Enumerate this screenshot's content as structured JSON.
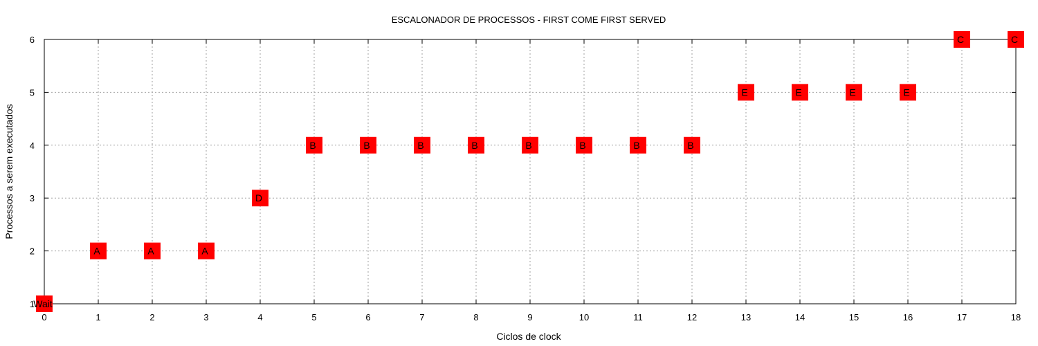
{
  "chart_data": {
    "type": "scatter",
    "title": "ESCALONADOR DE PROCESSOS - FIRST COME FIRST SERVED",
    "xlabel": "Ciclos de clock",
    "ylabel": "Processos a serem executados",
    "xlim": [
      0,
      18
    ],
    "ylim": [
      1,
      6
    ],
    "xticks": [
      0,
      1,
      2,
      3,
      4,
      5,
      6,
      7,
      8,
      9,
      10,
      11,
      12,
      13,
      14,
      15,
      16,
      17,
      18
    ],
    "yticks": [
      1,
      2,
      3,
      4,
      5,
      6
    ],
    "grid": true,
    "marker_color": "#ff0000",
    "points": [
      {
        "x": 0,
        "y": 1,
        "label": "Wait"
      },
      {
        "x": 1,
        "y": 2,
        "label": "A"
      },
      {
        "x": 2,
        "y": 2,
        "label": "A"
      },
      {
        "x": 3,
        "y": 2,
        "label": "A"
      },
      {
        "x": 4,
        "y": 3,
        "label": "D"
      },
      {
        "x": 5,
        "y": 4,
        "label": "B"
      },
      {
        "x": 6,
        "y": 4,
        "label": "B"
      },
      {
        "x": 7,
        "y": 4,
        "label": "B"
      },
      {
        "x": 8,
        "y": 4,
        "label": "B"
      },
      {
        "x": 9,
        "y": 4,
        "label": "B"
      },
      {
        "x": 10,
        "y": 4,
        "label": "B"
      },
      {
        "x": 11,
        "y": 4,
        "label": "B"
      },
      {
        "x": 12,
        "y": 4,
        "label": "B"
      },
      {
        "x": 13,
        "y": 5,
        "label": "E"
      },
      {
        "x": 14,
        "y": 5,
        "label": "E"
      },
      {
        "x": 15,
        "y": 5,
        "label": "E"
      },
      {
        "x": 16,
        "y": 5,
        "label": "E"
      },
      {
        "x": 17,
        "y": 6,
        "label": "C"
      },
      {
        "x": 18,
        "y": 6,
        "label": "C"
      }
    ]
  }
}
